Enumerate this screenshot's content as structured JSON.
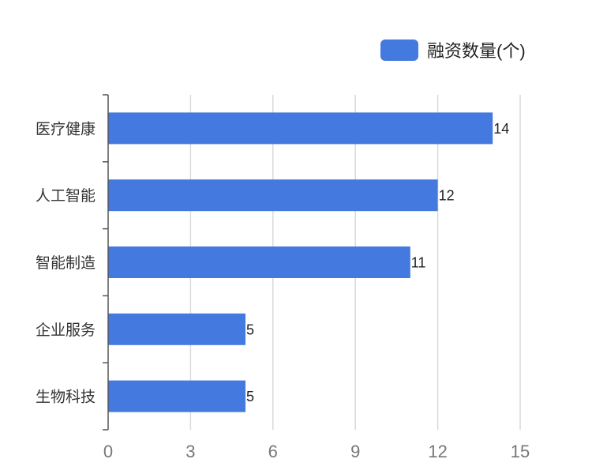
{
  "chart_data": {
    "type": "bar",
    "orientation": "horizontal",
    "categories": [
      "医疗健康",
      "人工智能",
      "智能制造",
      "企业服务",
      "生物科技"
    ],
    "series": [
      {
        "name": "融资数量(个)",
        "values": [
          14,
          12,
          11,
          5,
          5
        ],
        "color": "#4479e0"
      }
    ],
    "xlim": [
      0,
      15
    ],
    "xticks": [
      "0",
      "3",
      "6",
      "9",
      "12",
      "15"
    ],
    "grid": "vertical",
    "legend_position": "top-right",
    "data_labels": true
  }
}
